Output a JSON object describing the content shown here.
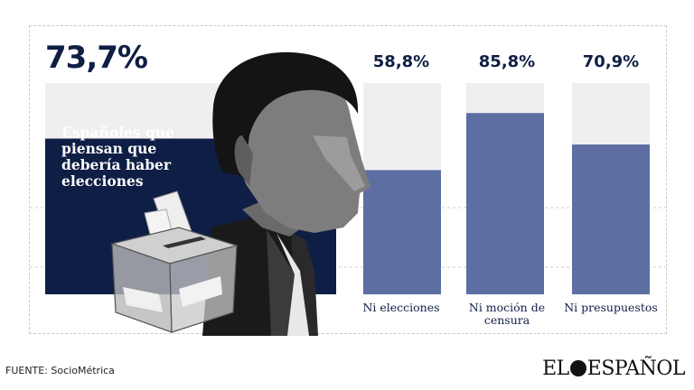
{
  "chart_data": {
    "type": "bar",
    "highlight": {
      "label": "Españoles que piensan que debería haber elecciones",
      "value": 73.7,
      "display": "73,7%"
    },
    "categories": [
      "Ni elecciones",
      "Ni moción de censura",
      "Ni presupuestos"
    ],
    "values": [
      58.8,
      85.8,
      70.9
    ],
    "display_values": [
      "58,8%",
      "85,8%",
      "70,9%"
    ],
    "ylim": [
      0,
      100
    ],
    "colors": {
      "highlight": "#0f1e45",
      "bars": "#5d6ea3",
      "track": "#efefef",
      "text": "#0f1e45"
    }
  },
  "source": "FUENTE: SocioMétrica",
  "brand": {
    "part1": "EL",
    "part2": "ESPAÑOL"
  },
  "illustration": {
    "subject": "man-portrait",
    "object": "ballot-box"
  }
}
